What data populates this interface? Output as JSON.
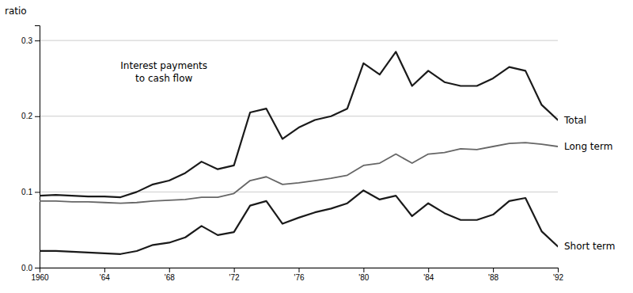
{
  "chart_data": {
    "type": "line",
    "ylabel": "ratio",
    "annotations": [
      "Interest payments",
      "to cash flow"
    ],
    "x": [
      1960,
      1961,
      1962,
      1963,
      1964,
      1965,
      1966,
      1967,
      1968,
      1969,
      1970,
      1971,
      1972,
      1973,
      1974,
      1975,
      1976,
      1977,
      1978,
      1979,
      1980,
      1981,
      1982,
      1983,
      1984,
      1985,
      1986,
      1987,
      1988,
      1989,
      1990,
      1991,
      1992
    ],
    "series": [
      {
        "name": "Long term",
        "color": "#666666",
        "values": [
          0.088,
          0.088,
          0.087,
          0.087,
          0.086,
          0.085,
          0.086,
          0.088,
          0.089,
          0.09,
          0.093,
          0.093,
          0.098,
          0.115,
          0.12,
          0.11,
          0.112,
          0.115,
          0.118,
          0.122,
          0.135,
          0.138,
          0.15,
          0.138,
          0.15,
          0.152,
          0.157,
          0.156,
          0.16,
          0.164,
          0.165,
          0.163,
          0.16
        ]
      },
      {
        "name": "Total",
        "color": "#1a1a1a",
        "values": [
          0.095,
          0.096,
          0.095,
          0.094,
          0.094,
          0.093,
          0.1,
          0.11,
          0.115,
          0.125,
          0.14,
          0.13,
          0.135,
          0.205,
          0.21,
          0.17,
          0.185,
          0.195,
          0.2,
          0.21,
          0.27,
          0.255,
          0.285,
          0.24,
          0.26,
          0.245,
          0.24,
          0.24,
          0.25,
          0.265,
          0.26,
          0.215,
          0.195
        ]
      },
      {
        "name": "Short term",
        "color": "#1a1a1a",
        "values": [
          0.022,
          0.022,
          0.021,
          0.02,
          0.019,
          0.018,
          0.022,
          0.03,
          0.033,
          0.04,
          0.055,
          0.043,
          0.047,
          0.082,
          0.088,
          0.058,
          0.066,
          0.073,
          0.078,
          0.085,
          0.102,
          0.09,
          0.095,
          0.068,
          0.085,
          0.072,
          0.063,
          0.063,
          0.07,
          0.088,
          0.092,
          0.048,
          0.028
        ]
      }
    ],
    "xlim": [
      1960,
      1992
    ],
    "ylim": [
      0.0,
      0.32
    ],
    "xticks": [
      1960,
      {
        "value": 1964,
        "label": "'64"
      },
      {
        "value": 1968,
        "label": "'68"
      },
      {
        "value": 1972,
        "label": "'72"
      },
      {
        "value": 1976,
        "label": "'76"
      },
      {
        "value": 1980,
        "label": "'80"
      },
      {
        "value": 1984,
        "label": "'84"
      },
      {
        "value": 1988,
        "label": "'88"
      },
      {
        "value": 1992,
        "label": "'92"
      }
    ],
    "yticks": [
      {
        "value": 0.0,
        "label": "0.0"
      },
      0.1,
      0.2,
      0.3
    ],
    "grid": true
  }
}
